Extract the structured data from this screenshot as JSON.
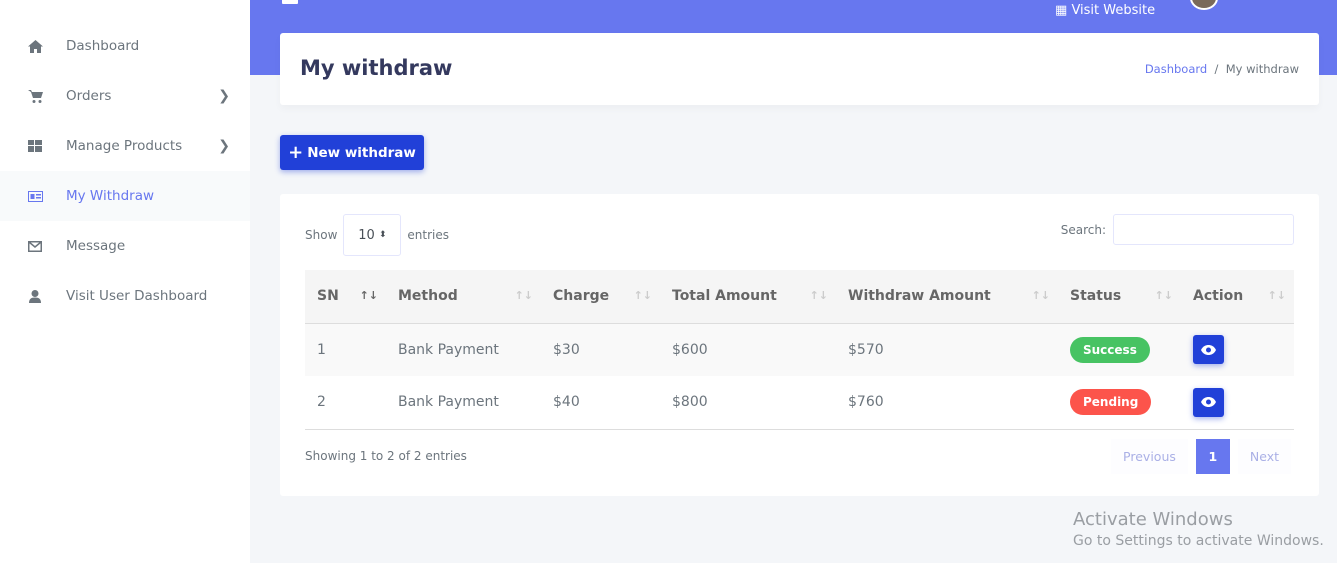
{
  "sidebar": {
    "items": [
      {
        "label": "Dashboard",
        "icon": "home-icon"
      },
      {
        "label": "Orders",
        "icon": "cart-icon",
        "has_children": true
      },
      {
        "label": "Manage Products",
        "icon": "grid-icon",
        "has_children": true
      },
      {
        "label": "My Withdraw",
        "icon": "id-card-icon",
        "active": true
      },
      {
        "label": "Message",
        "icon": "envelope-icon"
      },
      {
        "label": "Visit User Dashboard",
        "icon": "user-icon"
      }
    ]
  },
  "topbar": {
    "visit_website": "Visit Website",
    "accent": "#6777ef"
  },
  "header": {
    "title": "My withdraw",
    "breadcrumb": {
      "home": "Dashboard",
      "sep": "/",
      "current": "My withdraw"
    }
  },
  "new_button": {
    "label": "New withdraw",
    "icon": "plus-icon"
  },
  "table_controls": {
    "show": "Show",
    "entries_value": "10",
    "entries": "entries",
    "search_label": "Search:",
    "search_value": ""
  },
  "table": {
    "columns": [
      "SN",
      "Method",
      "Charge",
      "Total Amount",
      "Withdraw Amount",
      "Status",
      "Action"
    ],
    "rows": [
      {
        "sn": "1",
        "method": "Bank Payment",
        "charge": "$30",
        "total": "$600",
        "withdraw": "$570",
        "status": "Success",
        "status_color": "#47c363"
      },
      {
        "sn": "2",
        "method": "Bank Payment",
        "charge": "$40",
        "total": "$800",
        "withdraw": "$760",
        "status": "Pending",
        "status_color": "#fc544b"
      }
    ]
  },
  "footer": {
    "info": "Showing 1 to 2 of 2 entries",
    "previous": "Previous",
    "page": "1",
    "next": "Next"
  },
  "watermark": {
    "line1": "Activate Windows",
    "line2": "Go to Settings to activate Windows."
  }
}
